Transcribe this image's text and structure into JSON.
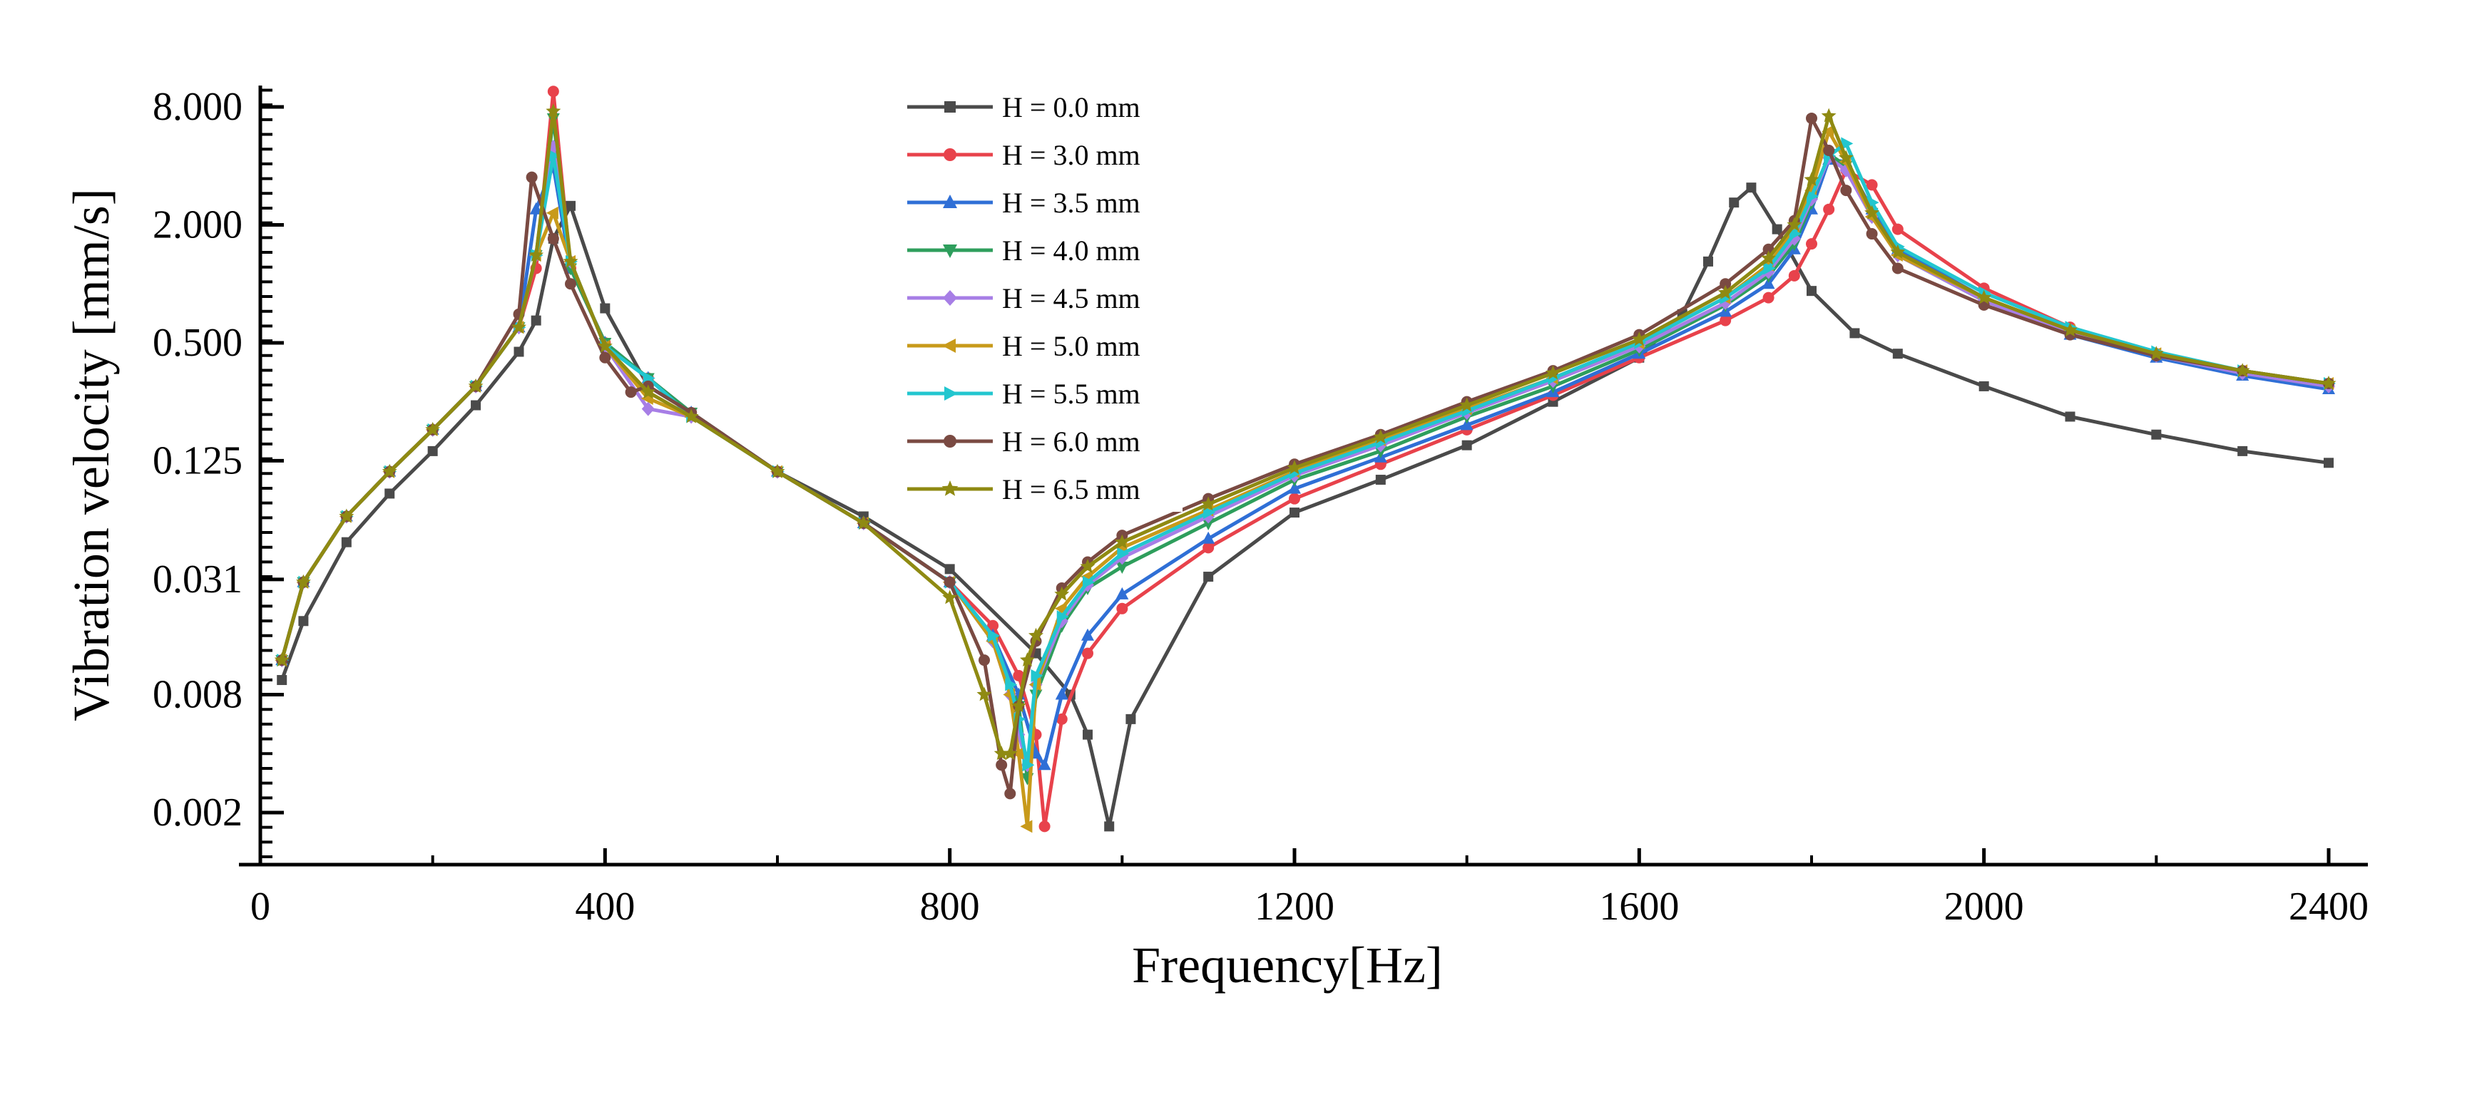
{
  "chart_data": {
    "type": "line",
    "title": "",
    "xlabel": "Frequency[Hz]",
    "ylabel": "Vibration velocity [mm/s]",
    "xlim": [
      0,
      2450
    ],
    "ylim": [
      0.001,
      11
    ],
    "yscale": "log2",
    "x_ticks": [
      0,
      400,
      800,
      1200,
      1600,
      2000,
      2400
    ],
    "x_tick_labels": [
      "0",
      "400",
      "800",
      "1200",
      "1600",
      "2000",
      "2400"
    ],
    "y_ticks": [
      0.002,
      0.008,
      0.031,
      0.125,
      0.5,
      2,
      8
    ],
    "y_tick_labels": [
      "0.002",
      "0.008",
      "0.031",
      "0.125",
      "0.500",
      "2.000",
      "8.000"
    ],
    "legend_position": "top-center",
    "series": [
      {
        "name": "H = 0.0 mm",
        "color": "#4a4a4a",
        "marker": "square",
        "x": [
          25,
          50,
          100,
          150,
          200,
          250,
          300,
          320,
          340,
          360,
          400,
          450,
          500,
          600,
          700,
          800,
          900,
          940,
          960,
          985,
          1010,
          1100,
          1200,
          1300,
          1400,
          1500,
          1600,
          1650,
          1680,
          1710,
          1730,
          1760,
          1800,
          1850,
          1900,
          2000,
          2100,
          2200,
          2300,
          2400
        ],
        "y": [
          0.0095,
          0.019,
          0.048,
          0.085,
          0.14,
          0.24,
          0.45,
          0.65,
          1.7,
          2.5,
          0.75,
          0.3,
          0.22,
          0.11,
          0.065,
          0.035,
          0.013,
          0.008,
          0.005,
          0.0017,
          0.006,
          0.032,
          0.068,
          0.1,
          0.15,
          0.25,
          0.42,
          0.7,
          1.3,
          2.6,
          3.1,
          1.9,
          0.92,
          0.56,
          0.44,
          0.3,
          0.21,
          0.17,
          0.14,
          0.122
        ]
      },
      {
        "name": "H = 3.0 mm",
        "color": "#e8424b",
        "marker": "circle",
        "x": [
          25,
          50,
          100,
          150,
          200,
          250,
          300,
          320,
          340,
          360,
          400,
          450,
          500,
          600,
          700,
          800,
          850,
          880,
          900,
          910,
          930,
          960,
          1000,
          1100,
          1200,
          1300,
          1400,
          1500,
          1600,
          1700,
          1750,
          1780,
          1800,
          1820,
          1840,
          1870,
          1900,
          2000,
          2100,
          2200,
          2300,
          2400
        ],
        "y": [
          0.012,
          0.03,
          0.065,
          0.11,
          0.18,
          0.3,
          0.6,
          1.2,
          9.6,
          1.2,
          0.5,
          0.33,
          0.22,
          0.11,
          0.06,
          0.03,
          0.018,
          0.01,
          0.005,
          0.0017,
          0.006,
          0.013,
          0.022,
          0.045,
          0.08,
          0.12,
          0.18,
          0.27,
          0.42,
          0.65,
          0.85,
          1.1,
          1.6,
          2.4,
          3.8,
          3.2,
          1.9,
          0.95,
          0.6,
          0.44,
          0.36,
          0.3
        ]
      },
      {
        "name": "H = 3.5 mm",
        "color": "#2f6fd6",
        "marker": "triangle-up",
        "x": [
          25,
          50,
          100,
          150,
          200,
          250,
          300,
          320,
          340,
          360,
          400,
          450,
          500,
          600,
          700,
          800,
          850,
          880,
          900,
          910,
          930,
          960,
          1000,
          1100,
          1200,
          1300,
          1400,
          1500,
          1600,
          1700,
          1750,
          1780,
          1800,
          1820,
          1840,
          1870,
          1900,
          2000,
          2100,
          2200,
          2300,
          2400
        ],
        "y": [
          0.012,
          0.03,
          0.065,
          0.11,
          0.18,
          0.3,
          0.6,
          2.4,
          4.0,
          1.2,
          0.5,
          0.33,
          0.22,
          0.11,
          0.06,
          0.03,
          0.016,
          0.008,
          0.004,
          0.0035,
          0.008,
          0.016,
          0.026,
          0.05,
          0.09,
          0.13,
          0.19,
          0.28,
          0.44,
          0.72,
          1.0,
          1.5,
          2.4,
          4.3,
          4.2,
          2.4,
          1.5,
          0.85,
          0.55,
          0.42,
          0.34,
          0.29
        ]
      },
      {
        "name": "H = 4.0 mm",
        "color": "#2e9e5c",
        "marker": "triangle-down",
        "x": [
          25,
          50,
          100,
          150,
          200,
          250,
          300,
          320,
          340,
          360,
          400,
          450,
          500,
          600,
          700,
          800,
          850,
          880,
          890,
          900,
          930,
          960,
          1000,
          1100,
          1200,
          1300,
          1400,
          1500,
          1600,
          1700,
          1750,
          1780,
          1800,
          1820,
          1840,
          1870,
          1900,
          2000,
          2100,
          2200,
          2300,
          2400
        ],
        "y": [
          0.012,
          0.03,
          0.065,
          0.11,
          0.18,
          0.3,
          0.6,
          1.4,
          7.0,
          1.2,
          0.5,
          0.33,
          0.22,
          0.11,
          0.06,
          0.03,
          0.015,
          0.007,
          0.003,
          0.008,
          0.018,
          0.028,
          0.036,
          0.06,
          0.1,
          0.14,
          0.21,
          0.3,
          0.46,
          0.78,
          1.1,
          1.6,
          2.6,
          4.6,
          4.0,
          2.3,
          1.4,
          0.82,
          0.56,
          0.43,
          0.35,
          0.3
        ]
      },
      {
        "name": "H = 4.5 mm",
        "color": "#a77ee6",
        "marker": "diamond",
        "x": [
          25,
          50,
          100,
          150,
          200,
          250,
          300,
          320,
          340,
          360,
          400,
          450,
          500,
          600,
          700,
          800,
          850,
          870,
          880,
          890,
          900,
          930,
          960,
          1000,
          1100,
          1200,
          1300,
          1400,
          1500,
          1600,
          1700,
          1750,
          1780,
          1800,
          1820,
          1840,
          1870,
          1900,
          2000,
          2100,
          2200,
          2300,
          2400
        ],
        "y": [
          0.012,
          0.03,
          0.065,
          0.11,
          0.18,
          0.3,
          0.6,
          1.4,
          5.0,
          1.3,
          0.48,
          0.23,
          0.21,
          0.11,
          0.06,
          0.03,
          0.015,
          0.008,
          0.005,
          0.0035,
          0.009,
          0.019,
          0.029,
          0.04,
          0.065,
          0.105,
          0.15,
          0.22,
          0.32,
          0.48,
          0.8,
          1.15,
          1.7,
          2.7,
          4.4,
          3.8,
          2.2,
          1.4,
          0.82,
          0.56,
          0.43,
          0.35,
          0.3
        ]
      },
      {
        "name": "H = 5.0 mm",
        "color": "#c89a1a",
        "marker": "triangle-left",
        "x": [
          25,
          50,
          100,
          150,
          200,
          250,
          300,
          320,
          340,
          360,
          400,
          450,
          500,
          600,
          700,
          800,
          850,
          870,
          880,
          890,
          900,
          930,
          960,
          1000,
          1100,
          1200,
          1300,
          1400,
          1500,
          1600,
          1700,
          1750,
          1780,
          1800,
          1820,
          1840,
          1870,
          1900,
          2000,
          2100,
          2200,
          2300,
          2400
        ],
        "y": [
          0.012,
          0.03,
          0.065,
          0.11,
          0.18,
          0.3,
          0.6,
          1.4,
          2.3,
          1.3,
          0.48,
          0.26,
          0.21,
          0.11,
          0.06,
          0.03,
          0.015,
          0.008,
          0.004,
          0.0017,
          0.009,
          0.022,
          0.032,
          0.045,
          0.07,
          0.11,
          0.16,
          0.23,
          0.33,
          0.5,
          0.85,
          1.25,
          1.9,
          3.0,
          6.0,
          4.2,
          2.2,
          1.4,
          0.85,
          0.58,
          0.44,
          0.36,
          0.31
        ]
      },
      {
        "name": "H = 5.5 mm",
        "color": "#22c6cf",
        "marker": "triangle-right",
        "x": [
          25,
          50,
          100,
          150,
          200,
          250,
          300,
          320,
          340,
          360,
          400,
          450,
          500,
          600,
          700,
          800,
          850,
          870,
          880,
          890,
          900,
          930,
          960,
          1000,
          1100,
          1200,
          1300,
          1400,
          1500,
          1600,
          1700,
          1750,
          1780,
          1800,
          1820,
          1840,
          1870,
          1900,
          2000,
          2100,
          2200,
          2300,
          2400
        ],
        "y": [
          0.012,
          0.03,
          0.065,
          0.11,
          0.18,
          0.3,
          0.6,
          1.4,
          4.5,
          1.3,
          0.48,
          0.33,
          0.21,
          0.11,
          0.06,
          0.03,
          0.016,
          0.009,
          0.006,
          0.0035,
          0.01,
          0.02,
          0.03,
          0.042,
          0.068,
          0.108,
          0.155,
          0.225,
          0.33,
          0.5,
          0.85,
          1.2,
          1.8,
          2.8,
          4.5,
          5.2,
          2.6,
          1.55,
          0.9,
          0.6,
          0.45,
          0.36,
          0.31
        ]
      },
      {
        "name": "H = 6.0 mm",
        "color": "#7a4a42",
        "marker": "circle",
        "x": [
          25,
          50,
          100,
          150,
          200,
          250,
          300,
          315,
          340,
          360,
          400,
          430,
          450,
          500,
          600,
          700,
          800,
          840,
          860,
          870,
          880,
          900,
          930,
          960,
          1000,
          1100,
          1200,
          1300,
          1400,
          1500,
          1600,
          1700,
          1750,
          1780,
          1800,
          1820,
          1840,
          1870,
          1900,
          2000,
          2100,
          2200,
          2300,
          2400
        ],
        "y": [
          0.012,
          0.03,
          0.065,
          0.11,
          0.18,
          0.3,
          0.7,
          3.5,
          1.7,
          1.0,
          0.42,
          0.28,
          0.3,
          0.22,
          0.11,
          0.06,
          0.03,
          0.012,
          0.0035,
          0.0025,
          0.007,
          0.015,
          0.028,
          0.038,
          0.052,
          0.08,
          0.12,
          0.17,
          0.25,
          0.36,
          0.55,
          1.0,
          1.5,
          2.1,
          7.0,
          4.8,
          3.0,
          1.8,
          1.2,
          0.78,
          0.55,
          0.43,
          0.36,
          0.31
        ]
      },
      {
        "name": "H = 6.5 mm",
        "color": "#8f8a12",
        "marker": "star",
        "x": [
          25,
          50,
          100,
          150,
          200,
          250,
          300,
          320,
          340,
          360,
          400,
          450,
          500,
          600,
          700,
          800,
          840,
          860,
          870,
          880,
          890,
          900,
          930,
          960,
          1000,
          1100,
          1200,
          1300,
          1400,
          1500,
          1600,
          1700,
          1750,
          1780,
          1800,
          1820,
          1840,
          1870,
          1900,
          2000,
          2100,
          2200,
          2300,
          2400
        ],
        "y": [
          0.012,
          0.03,
          0.065,
          0.11,
          0.18,
          0.3,
          0.6,
          1.4,
          7.6,
          1.3,
          0.48,
          0.28,
          0.21,
          0.11,
          0.06,
          0.025,
          0.008,
          0.004,
          0.004,
          0.007,
          0.012,
          0.016,
          0.026,
          0.036,
          0.048,
          0.075,
          0.115,
          0.165,
          0.24,
          0.35,
          0.52,
          0.9,
          1.35,
          2.0,
          3.4,
          7.2,
          4.4,
          2.3,
          1.45,
          0.85,
          0.58,
          0.44,
          0.36,
          0.31
        ]
      }
    ]
  }
}
